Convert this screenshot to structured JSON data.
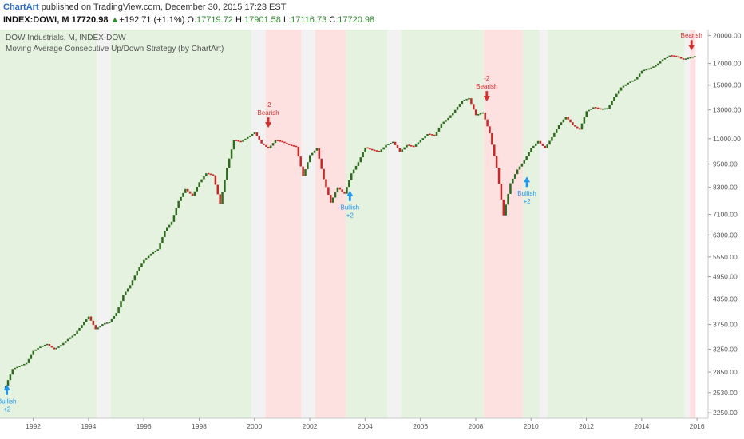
{
  "header": {
    "brand": "ChartArt",
    "published": "published on TradingView.com, December 30, 2015 17:23 EST",
    "symbol": "INDEX:DOWI, M",
    "last": "17720.98",
    "change_arrow": "▲",
    "change": "+192.71 (+1.1%)",
    "open_label": "O:",
    "open": "17719.72",
    "high_label": "H:",
    "high": "17901.58",
    "low_label": "L:",
    "low": "17116.73",
    "close_label": "C:",
    "close": "17720.98"
  },
  "legend": {
    "line1": "DOW Industrials, M, INDEX-DOW",
    "line2": "Moving Average Consecutive Up/Down Strategy (by ChartArt)"
  },
  "colors": {
    "up_bar": "#2e6b1f",
    "down_bar": "#c62828",
    "bg_bull": "#e4f2df",
    "bg_bear": "#fde0e0",
    "bg_neutral": "#f2f2f2",
    "bullish_signal": "#2196f3",
    "bearish_signal": "#d32f2f"
  },
  "chart_data": {
    "type": "ohlc",
    "scale": "log",
    "x_range": [
      1990.8,
      2016.4
    ],
    "y_range": [
      2180,
      20700
    ],
    "x_ticks": [
      "1992",
      "1994",
      "1996",
      "1998",
      "2000",
      "2002",
      "2004",
      "2006",
      "2008",
      "2010",
      "2012",
      "2014",
      "2016"
    ],
    "y_ticks": [
      "20000.00",
      "17000.00",
      "15000.00",
      "13000.00",
      "11000.00",
      "9500.00",
      "8300.00",
      "7100.00",
      "6300.00",
      "5550.00",
      "4950.00",
      "4350.00",
      "3750.00",
      "3250.00",
      "2850.00",
      "2530.00",
      "2250.00"
    ],
    "series": [
      {
        "values": [
          [
            1991.0,
            2633
          ],
          [
            1991.25,
            2900
          ],
          [
            1991.5,
            2950
          ],
          [
            1991.75,
            3000
          ],
          [
            1992.0,
            3220
          ],
          [
            1992.25,
            3300
          ],
          [
            1992.5,
            3350
          ],
          [
            1992.75,
            3250
          ],
          [
            1993.0,
            3330
          ],
          [
            1993.25,
            3450
          ],
          [
            1993.5,
            3550
          ],
          [
            1993.75,
            3740
          ],
          [
            1994.0,
            3930
          ],
          [
            1994.25,
            3650
          ],
          [
            1994.5,
            3760
          ],
          [
            1994.75,
            3800
          ],
          [
            1995.0,
            4010
          ],
          [
            1995.25,
            4450
          ],
          [
            1995.5,
            4710
          ],
          [
            1995.75,
            5120
          ],
          [
            1996.0,
            5450
          ],
          [
            1996.25,
            5650
          ],
          [
            1996.5,
            5800
          ],
          [
            1996.75,
            6450
          ],
          [
            1997.0,
            6800
          ],
          [
            1997.25,
            7670
          ],
          [
            1997.5,
            8220
          ],
          [
            1997.75,
            7900
          ],
          [
            1998.0,
            8550
          ],
          [
            1998.25,
            9000
          ],
          [
            1998.5,
            8900
          ],
          [
            1998.75,
            7550
          ],
          [
            1999.0,
            9300
          ],
          [
            1999.25,
            10900
          ],
          [
            1999.5,
            10800
          ],
          [
            1999.75,
            11100
          ],
          [
            2000.0,
            11400
          ],
          [
            2000.25,
            10700
          ],
          [
            2000.5,
            10400
          ],
          [
            2000.75,
            10900
          ],
          [
            2001.0,
            10800
          ],
          [
            2001.25,
            10600
          ],
          [
            2001.5,
            10500
          ],
          [
            2001.75,
            8850
          ],
          [
            2002.0,
            10000
          ],
          [
            2002.25,
            10400
          ],
          [
            2002.5,
            8700
          ],
          [
            2002.75,
            7600
          ],
          [
            2003.0,
            8300
          ],
          [
            2003.25,
            8000
          ],
          [
            2003.5,
            9000
          ],
          [
            2003.75,
            9600
          ],
          [
            2004.0,
            10450
          ],
          [
            2004.25,
            10300
          ],
          [
            2004.5,
            10200
          ],
          [
            2004.75,
            10600
          ],
          [
            2005.0,
            10800
          ],
          [
            2005.25,
            10200
          ],
          [
            2005.5,
            10600
          ],
          [
            2005.75,
            10500
          ],
          [
            2006.0,
            10900
          ],
          [
            2006.25,
            11300
          ],
          [
            2006.5,
            11200
          ],
          [
            2006.75,
            12000
          ],
          [
            2007.0,
            12400
          ],
          [
            2007.25,
            13000
          ],
          [
            2007.5,
            13700
          ],
          [
            2007.75,
            13900
          ],
          [
            2008.0,
            12600
          ],
          [
            2008.25,
            12800
          ],
          [
            2008.5,
            11350
          ],
          [
            2008.75,
            9300
          ],
          [
            2009.0,
            7060
          ],
          [
            2009.25,
            8500
          ],
          [
            2009.5,
            9200
          ],
          [
            2009.75,
            9700
          ],
          [
            2010.0,
            10400
          ],
          [
            2010.25,
            10850
          ],
          [
            2010.5,
            10400
          ],
          [
            2010.75,
            11100
          ],
          [
            2011.0,
            11900
          ],
          [
            2011.25,
            12500
          ],
          [
            2011.5,
            11900
          ],
          [
            2011.75,
            11600
          ],
          [
            2012.0,
            12900
          ],
          [
            2012.25,
            13200
          ],
          [
            2012.5,
            13050
          ],
          [
            2012.75,
            13100
          ],
          [
            2013.0,
            14000
          ],
          [
            2013.25,
            14800
          ],
          [
            2013.5,
            15200
          ],
          [
            2013.75,
            15500
          ],
          [
            2014.0,
            16300
          ],
          [
            2014.25,
            16500
          ],
          [
            2014.5,
            16800
          ],
          [
            2014.75,
            17400
          ],
          [
            2015.0,
            17800
          ],
          [
            2015.25,
            17700
          ],
          [
            2015.5,
            17400
          ],
          [
            2015.75,
            17600
          ],
          [
            2015.92,
            17720
          ]
        ]
      }
    ],
    "background_regions": [
      {
        "type": "bull",
        "range": [
          1990.8,
          1994.3
        ]
      },
      {
        "type": "neutral",
        "range": [
          1994.3,
          1994.8
        ]
      },
      {
        "type": "bull",
        "range": [
          1994.8,
          1999.9
        ]
      },
      {
        "type": "neutral",
        "range": [
          1999.9,
          2000.4
        ]
      },
      {
        "type": "bear",
        "range": [
          2000.4,
          2001.7
        ]
      },
      {
        "type": "neutral",
        "range": [
          2001.7,
          2002.2
        ]
      },
      {
        "type": "bear",
        "range": [
          2002.2,
          2003.3
        ]
      },
      {
        "type": "bull",
        "range": [
          2003.3,
          2004.8
        ]
      },
      {
        "type": "neutral",
        "range": [
          2004.8,
          2005.3
        ]
      },
      {
        "type": "bull",
        "range": [
          2005.3,
          2008.3
        ]
      },
      {
        "type": "bear",
        "range": [
          2008.3,
          2009.7
        ]
      },
      {
        "type": "bull",
        "range": [
          2009.7,
          2010.3
        ]
      },
      {
        "type": "neutral",
        "range": [
          2010.3,
          2010.6
        ]
      },
      {
        "type": "bull",
        "range": [
          2010.6,
          2015.55
        ]
      },
      {
        "type": "neutral",
        "range": [
          2015.55,
          2015.75
        ]
      },
      {
        "type": "bear",
        "range": [
          2015.75,
          2015.95
        ]
      }
    ],
    "signals": [
      {
        "type": "bullish",
        "x": 1991.05,
        "price": 2700,
        "label": "Bullish",
        "value": "+2"
      },
      {
        "type": "bearish",
        "x": 2000.5,
        "price": 11500,
        "label": "Bearish",
        "value": "-2"
      },
      {
        "type": "bullish",
        "x": 2003.45,
        "price": 8300,
        "label": "Bullish",
        "value": "+2"
      },
      {
        "type": "bearish",
        "x": 2008.4,
        "price": 13400,
        "label": "Bearish",
        "value": "-2"
      },
      {
        "type": "bullish",
        "x": 2009.85,
        "price": 9000,
        "label": "Bullish",
        "value": "+2"
      },
      {
        "type": "bearish",
        "x": 2015.8,
        "price": 18000,
        "label": "Bearish",
        "value": ""
      }
    ]
  }
}
